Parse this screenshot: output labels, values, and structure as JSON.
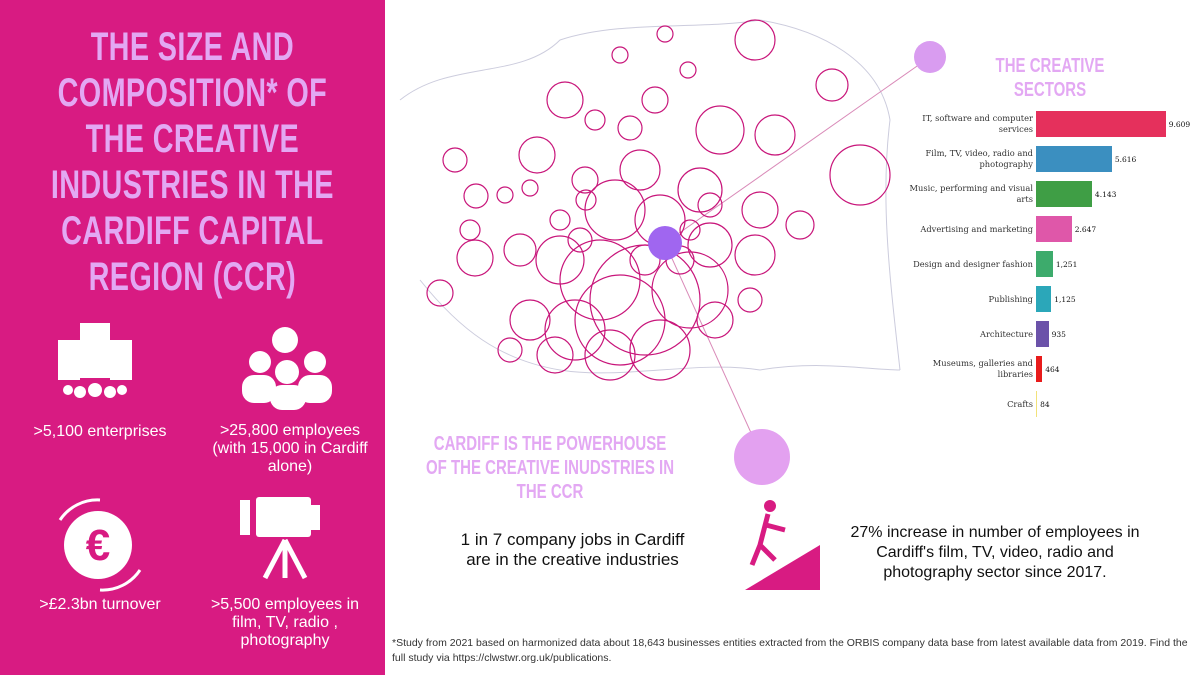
{
  "left_panel": {
    "title": "THE SIZE AND COMPOSITION* OF THE CREATIVE INDUSTRIES IN THE CARDIFF CAPITAL REGION (CCR)",
    "stats": [
      ">5,100 enterprises",
      ">25,800 employees (with 15,000 in Cardiff alone)",
      ">£2.3bn turnover",
      ">5,500 employees in film, TV, radio , photography"
    ]
  },
  "powerhouse": {
    "heading": "CARDIFF IS THE POWERHOUSE OF THE CREATIVE INUDSTRIES IN THE CCR",
    "fact1": "1 in 7 company jobs in Cardiff are in the creative industries",
    "fact2": "27% increase in number of employees in Cardiff's film, TV, video, radio and photography sector since 2017."
  },
  "footnote": "*Study from 2021 based on harmonized data about 18,643 businesses entities extracted from the ORBIS company data base from latest available data from 2019. Find the full study via https://clwstwr.org.uk/publications.",
  "chart_data": {
    "type": "hbar",
    "title": "THE CREATIVE SECTORS",
    "categories": [
      "IT, software and computer services",
      "Film, TV, video, radio and photography",
      "Music, performing and visual arts",
      "Advertising and marketing",
      "Design and designer fashion",
      "Publishing",
      "Architecture",
      "Museums, galleries and libraries",
      "Crafts"
    ],
    "values": [
      9609,
      5616,
      4143,
      2647,
      1251,
      1125,
      935,
      464,
      84
    ],
    "value_labels": [
      "9.609",
      "5.616",
      "4.143",
      "2.647",
      "1,251",
      "1,125",
      "935",
      "464",
      "84"
    ],
    "colors": [
      "#e5305c",
      "#3b8fc0",
      "#3f9e45",
      "#df57a9",
      "#3dab6c",
      "#2ba7b9",
      "#6b52a9",
      "#e81b1b",
      "#f2e27a"
    ],
    "xlim": [
      0,
      10000
    ]
  }
}
